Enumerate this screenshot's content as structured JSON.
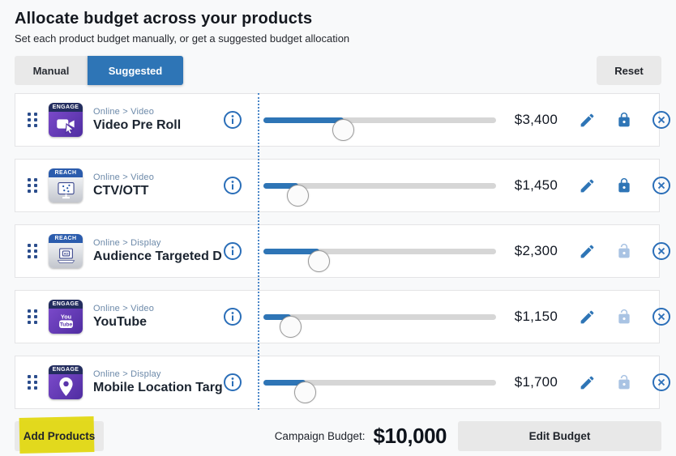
{
  "header": {
    "title": "Allocate budget across your products",
    "subtitle": "Set each product budget manually, or get a suggested budget allocation"
  },
  "tabs": {
    "manual_label": "Manual",
    "suggested_label": "Suggested",
    "active": "Suggested",
    "reset_label": "Reset"
  },
  "products": [
    {
      "badge": "ENGAGE",
      "icon": "video-camera-icon",
      "icon_style": "purple",
      "category": "Online > Video",
      "name": "Video Pre Roll",
      "value": "$3,400",
      "percent": 34.5,
      "locked": true
    },
    {
      "badge": "REACH",
      "icon": "ctv-monitor-icon",
      "icon_style": "gray",
      "category": "Online > Video",
      "name": "CTV/OTT",
      "value": "$1,450",
      "percent": 15,
      "locked": true
    },
    {
      "badge": "REACH",
      "icon": "display-ad-icon",
      "icon_style": "gray",
      "category": "Online > Display",
      "name": "Audience Targeted Dis...",
      "value": "$2,300",
      "percent": 24,
      "locked": false
    },
    {
      "badge": "ENGAGE",
      "icon": "youtube-icon",
      "icon_style": "purple",
      "category": "Online > Video",
      "name": "YouTube",
      "value": "$1,150",
      "percent": 12,
      "locked": false
    },
    {
      "badge": "ENGAGE",
      "icon": "location-pin-icon",
      "icon_style": "purple",
      "category": "Online > Display",
      "name": "Mobile Location Target...",
      "value": "$1,700",
      "percent": 18,
      "locked": false
    }
  ],
  "footer": {
    "add_products_label": "Add Products",
    "campaign_budget_label": "Campaign Budget:",
    "campaign_budget_value": "$10,000",
    "edit_budget_label": "Edit Budget"
  },
  "colors": {
    "accent_blue": "#2e75b6",
    "unlocked_blue": "#a9c3e3",
    "engage_navy": "#232d5f",
    "reach_blue": "#2b5cad",
    "purple_icon": "#5f37b5",
    "highlight_yellow": "#e2d812",
    "track_gray": "#d6d6d6",
    "button_gray": "#e9e9e9"
  }
}
